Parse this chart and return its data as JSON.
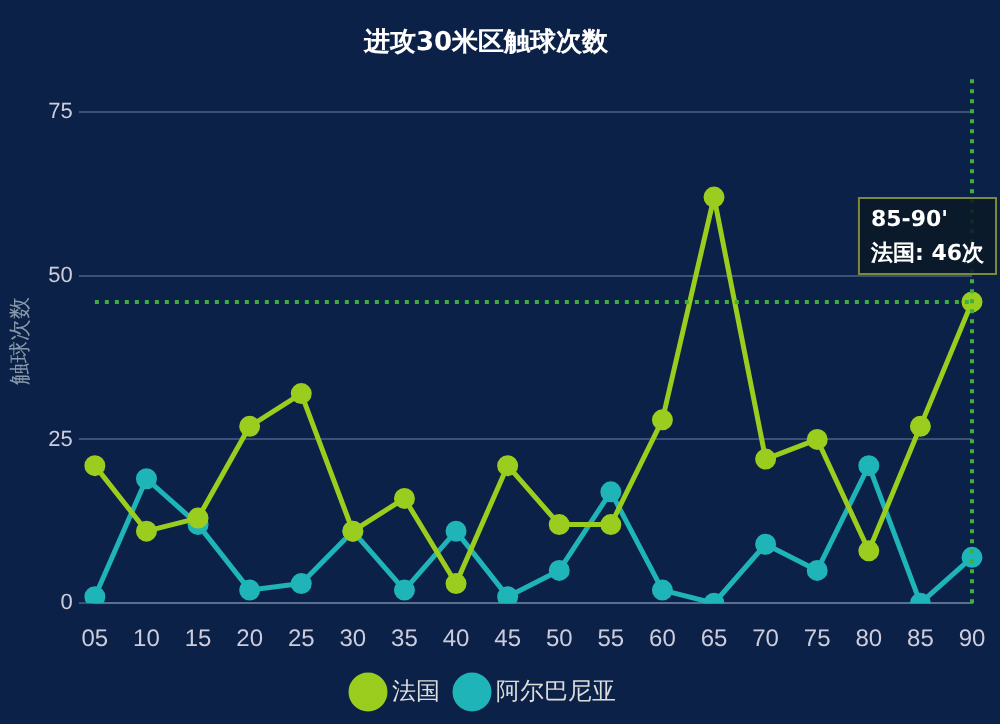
{
  "chart_data": {
    "type": "line",
    "title": "进攻30米区触球次数",
    "ylabel": "触球次数",
    "categories": [
      "05",
      "10",
      "15",
      "20",
      "25",
      "30",
      "35",
      "40",
      "45",
      "50",
      "55",
      "60",
      "65",
      "70",
      "75",
      "80",
      "85",
      "90"
    ],
    "series": [
      {
        "name": "法国",
        "color": "#9acd1e",
        "values": [
          21,
          11,
          13,
          27,
          32,
          11,
          16,
          3,
          21,
          12,
          12,
          28,
          62,
          22,
          25,
          8,
          27,
          46
        ]
      },
      {
        "name": "阿尔巴尼亚",
        "color": "#1fb5b8",
        "values": [
          1,
          19,
          12,
          2,
          3,
          11,
          2,
          11,
          1,
          5,
          17,
          2,
          0,
          9,
          5,
          21,
          0,
          7
        ]
      }
    ],
    "ylim": [
      0,
      80
    ],
    "yticks": [
      0,
      25,
      50,
      75
    ],
    "grid": "y",
    "legend": "bottom",
    "marker": "circle",
    "line_style": "solid",
    "ref_lines": [
      {
        "axis": "y",
        "value": 46,
        "color": "#3fae3f",
        "line_style": "dotted"
      },
      {
        "axis": "x",
        "value": "90",
        "color": "#3fae3f",
        "line_style": "dotted"
      }
    ],
    "annotations": [
      {
        "text": "85-90' 法国: 46次",
        "x": "90",
        "y": 46
      }
    ]
  }
}
